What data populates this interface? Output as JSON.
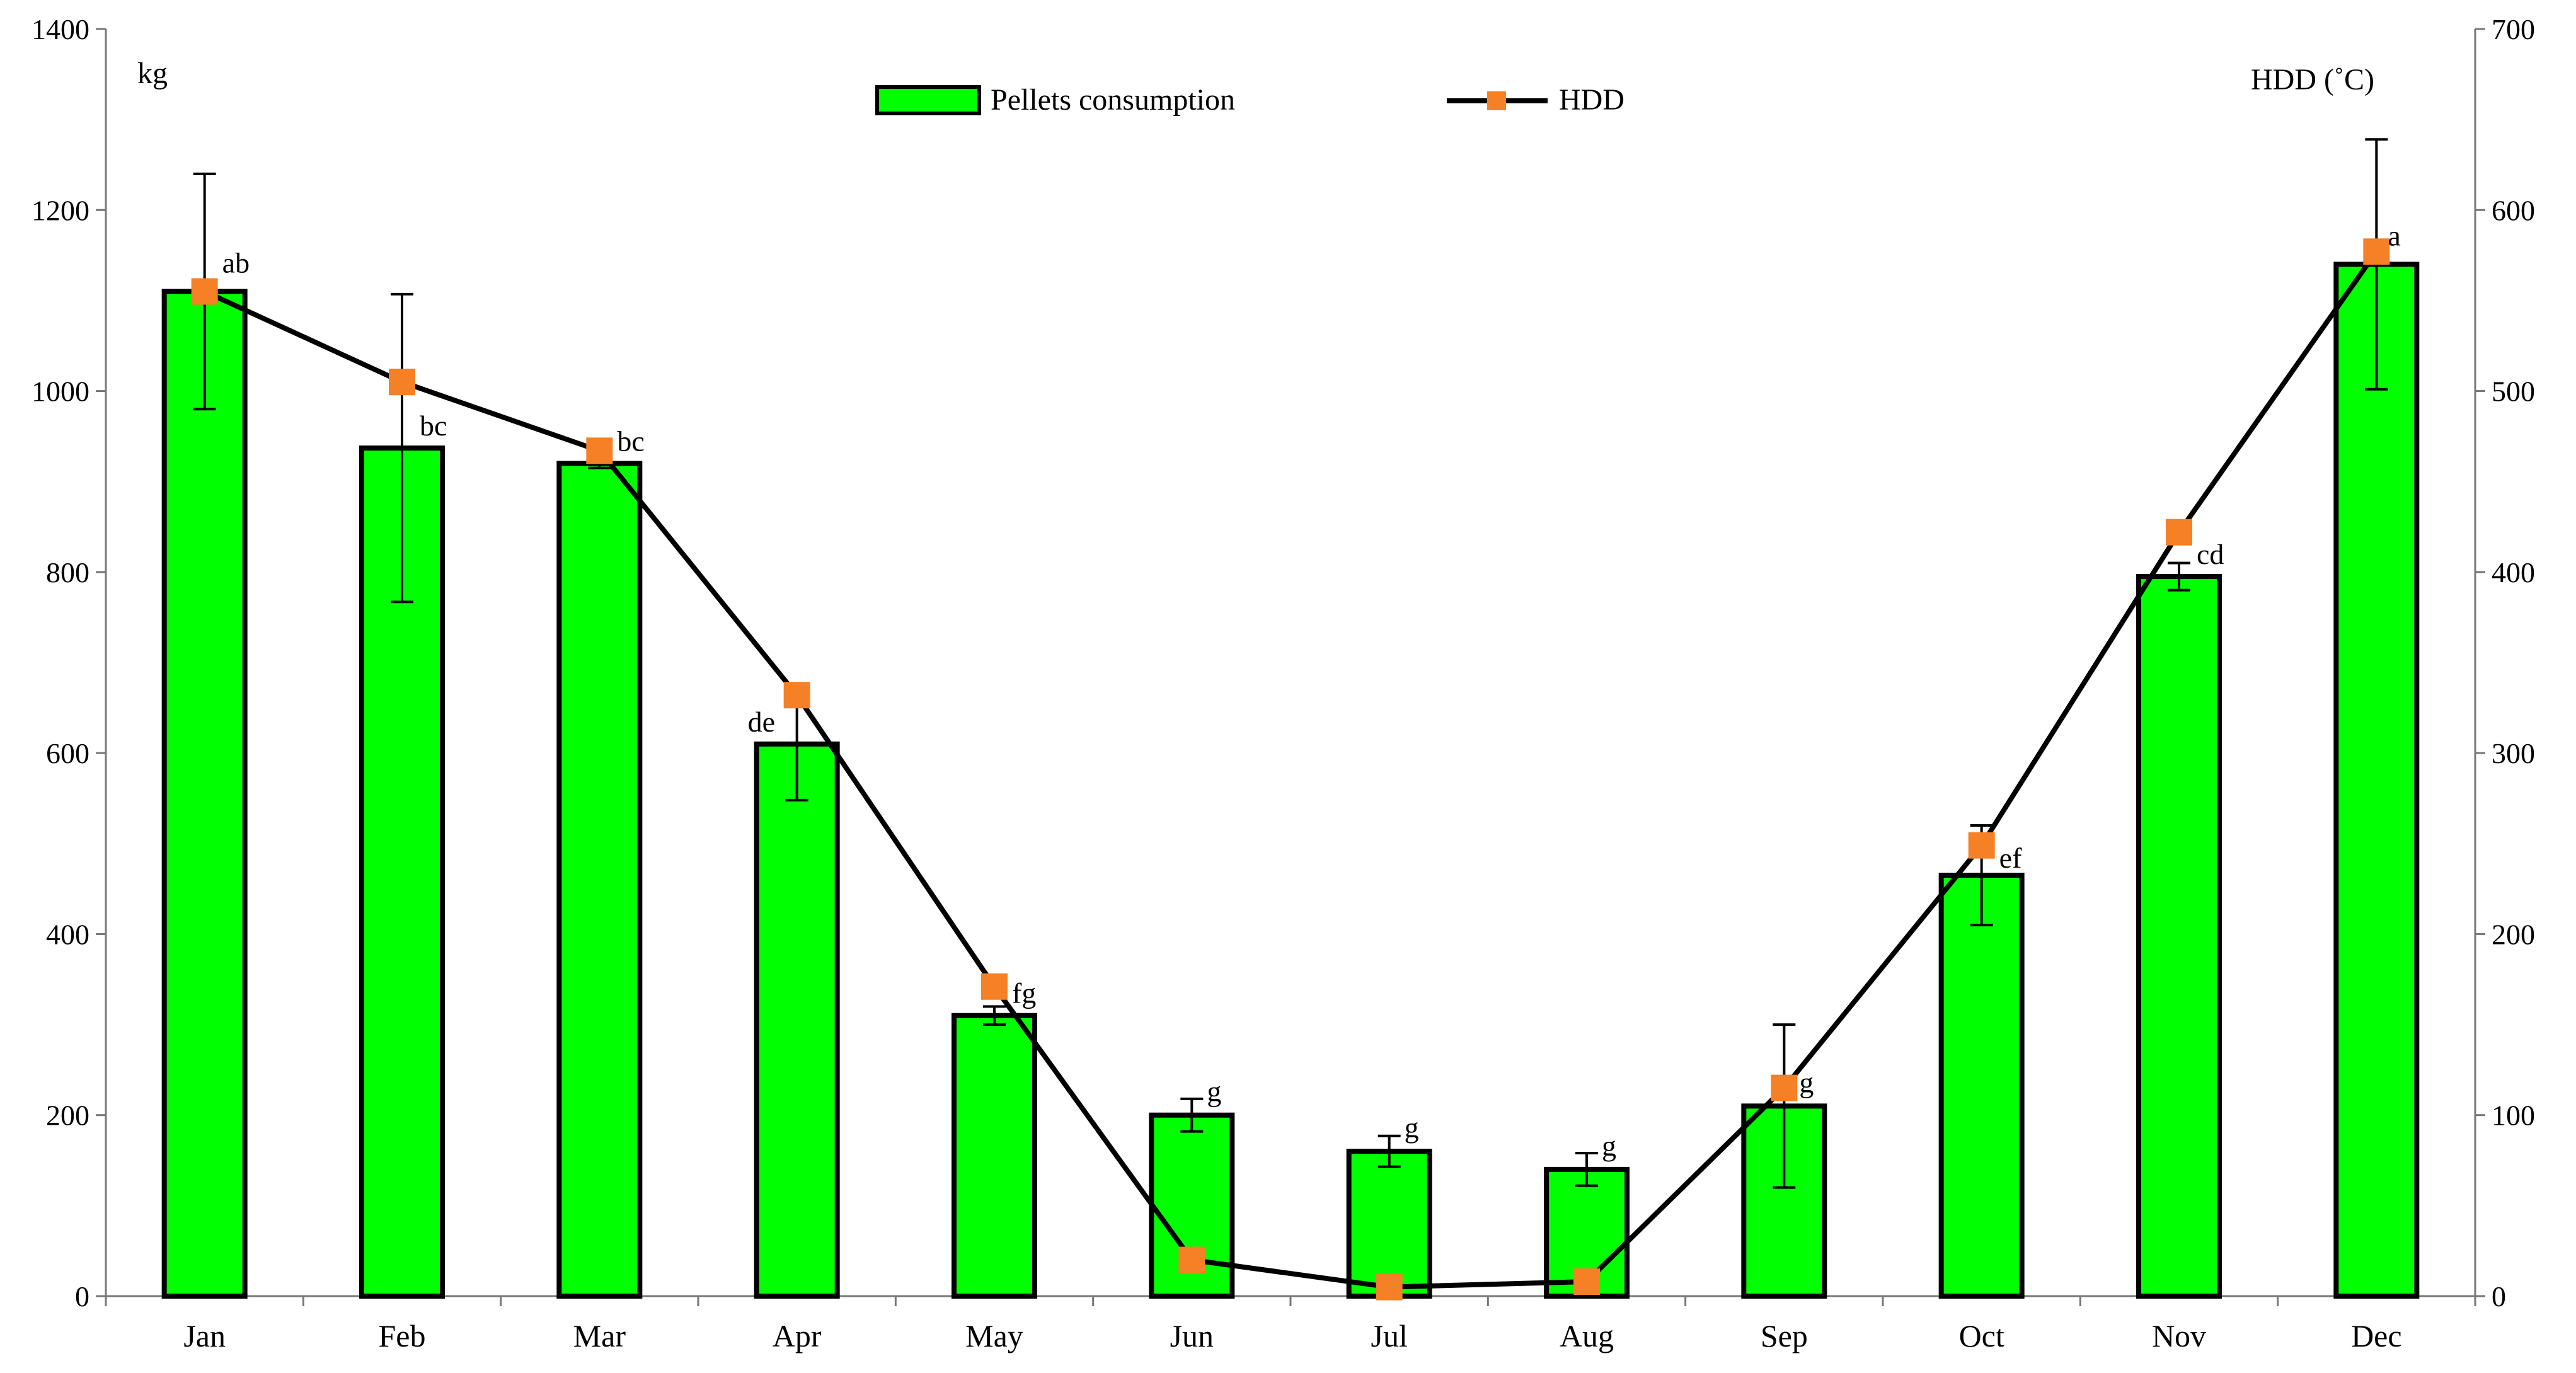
{
  "chart_data": {
    "type": "bar",
    "categories": [
      "Jan",
      "Feb",
      "Mar",
      "Apr",
      "May",
      "Jun",
      "Jul",
      "Aug",
      "Sep",
      "Oct",
      "Nov",
      "Dec"
    ],
    "series": [
      {
        "name": "Pellets consumption",
        "axis": "left",
        "kind": "bar",
        "color": "#00ff00",
        "values": [
          1110,
          937,
          920,
          610,
          310,
          200,
          160,
          140,
          210,
          465,
          795,
          1140
        ],
        "error": [
          130,
          170,
          5,
          62,
          10,
          18,
          17,
          18,
          90,
          55,
          15,
          138
        ],
        "significance_letters": [
          "ab",
          "bc",
          "bc",
          "de",
          "fg",
          "g",
          "g",
          "g",
          "g",
          "ef",
          "cd",
          "a"
        ]
      },
      {
        "name": "HDD",
        "axis": "right",
        "kind": "line",
        "line_color": "#000000",
        "marker_color": "#f58025",
        "values": [
          555,
          505,
          467,
          332,
          171,
          20,
          5,
          8,
          115,
          249,
          422,
          577
        ]
      }
    ],
    "ylabel_left": "kg",
    "ylabel_right": "HDD (˚C)",
    "ylim_left": [
      0,
      1400
    ],
    "ylim_right": [
      0,
      700
    ],
    "yticks_left": [
      "0",
      "200",
      "400",
      "600",
      "800",
      "1000",
      "1200",
      "1400"
    ],
    "yticks_right": [
      "0",
      "100",
      "200",
      "300",
      "400",
      "500",
      "600",
      "700"
    ],
    "legend_position": "top-center",
    "grid": false
  }
}
